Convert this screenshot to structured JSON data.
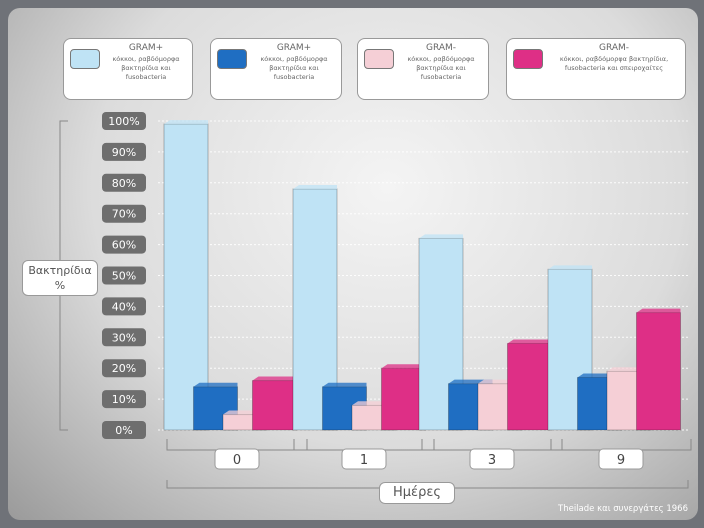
{
  "legend": [
    {
      "title": "GRAM+",
      "desc": "κόκκοι, ραβδόμορφα βακτηρίδια και fusobacteria",
      "color": "#bfe3f5"
    },
    {
      "title": "GRAM+",
      "desc": "κόκκοι, ραβδόμορφα βακτηρίδια και fusobacteria",
      "color": "#1f6ec2"
    },
    {
      "title": "GRAM-",
      "desc": "κόκκοι, ραβδόμορφα βακτηρίδια και fusobacteria",
      "color": "#f5cfd6"
    },
    {
      "title": "GRAM-",
      "desc": "κόκκοι, ραβδόμορφα βακτηρίδια, fusobacteria και σπειροχαίτες",
      "color": "#de2f86"
    }
  ],
  "y_axis": {
    "label_line1": "Βακτηρίδια",
    "label_line2": "%"
  },
  "x_axis": {
    "label": "Ημέρες"
  },
  "source": "Theilade και συνεργάτες 1966",
  "chart_data": {
    "type": "bar",
    "categories": [
      "0",
      "1",
      "3",
      "9"
    ],
    "series": [
      {
        "values": [
          99,
          78,
          62,
          52
        ]
      },
      {
        "values": [
          14,
          14,
          15,
          17
        ]
      },
      {
        "values": [
          5,
          8,
          15,
          19
        ]
      },
      {
        "values": [
          16,
          20,
          28,
          38
        ]
      }
    ],
    "ylim": [
      0,
      100
    ],
    "y_ticks": [
      "0%",
      "10%",
      "20%",
      "30%",
      "40%",
      "50%",
      "60%",
      "70%",
      "80%",
      "90%",
      "100%"
    ],
    "colors": [
      "#bfe3f5",
      "#1f6ec2",
      "#f5cfd6",
      "#de2f86"
    ],
    "grid": true
  }
}
